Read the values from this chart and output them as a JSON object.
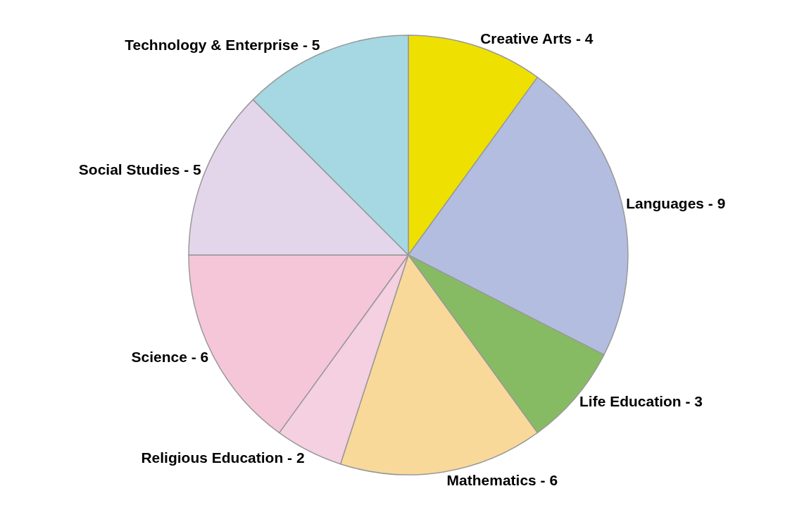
{
  "chart_data": {
    "type": "pie",
    "categories": [
      "Creative Arts - 4",
      "Languages - 9",
      "Life Education - 3",
      "Mathematics - 6",
      "Religious Education - 2",
      "Science - 6",
      "Social Studies - 5",
      "Technology & Enterprise - 5"
    ],
    "values": [
      10,
      22.5,
      7.5,
      15,
      5,
      15,
      12.5,
      12.5
    ],
    "colors": [
      "#eee000",
      "#b3bde0",
      "#86bb63",
      "#f8d99a",
      "#f4d0e0",
      "#f5c6d8",
      "#e3d6ea",
      "#a5d8e2"
    ],
    "legend": false
  }
}
